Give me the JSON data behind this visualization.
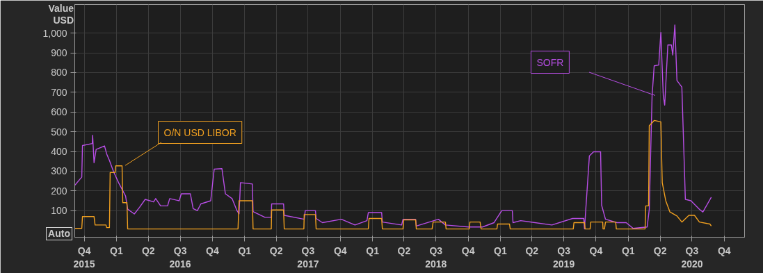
{
  "chart_data": {
    "type": "line",
    "ylabel": "Value\nUSD",
    "annotations": [
      "Auto"
    ],
    "xlim": [
      "2015-09-04",
      "2020-11-28"
    ],
    "ylim": [
      -35,
      1145
    ],
    "xticks": [
      {
        "value": "2015-10-01",
        "label": "Q4\n2015"
      },
      {
        "value": "2016-01-01",
        "label": "Q1"
      },
      {
        "value": "2016-04-01",
        "label": "Q2"
      },
      {
        "value": "2016-07-01",
        "label": "Q3\n2016"
      },
      {
        "value": "2016-10-01",
        "label": "Q4"
      },
      {
        "value": "2017-01-01",
        "label": "Q1"
      },
      {
        "value": "2017-04-01",
        "label": "Q2"
      },
      {
        "value": "2017-07-01",
        "label": "Q3\n2017"
      },
      {
        "value": "2017-10-01",
        "label": "Q4"
      },
      {
        "value": "2018-01-01",
        "label": "Q1"
      },
      {
        "value": "2018-04-01",
        "label": "Q2"
      },
      {
        "value": "2018-07-01",
        "label": "Q3\n2018"
      },
      {
        "value": "2018-10-01",
        "label": "Q4"
      },
      {
        "value": "2019-01-01",
        "label": "Q1"
      },
      {
        "value": "2019-04-01",
        "label": "Q2"
      },
      {
        "value": "2019-07-01",
        "label": "Q3\n2019"
      },
      {
        "value": "2019-10-01",
        "label": "Q4"
      },
      {
        "value": "2020-01-01",
        "label": "Q1"
      },
      {
        "value": "2020-04-01",
        "label": "Q2"
      },
      {
        "value": "2020-07-01",
        "label": "Q3\n2020"
      },
      {
        "value": "2020-10-01",
        "label": "Q4"
      }
    ],
    "yticks": [
      100,
      200,
      300,
      400,
      500,
      600,
      700,
      800,
      900,
      {
        "value": 1000,
        "label": "1,000"
      }
    ],
    "grid": true,
    "legend": false,
    "marker": "none",
    "line_style": "solid",
    "series": [
      {
        "name": "SOFR",
        "color": "#b84ee6",
        "x": [
          "2015-09-04",
          "2015-09-24",
          "2015-09-26",
          "2015-10-24",
          "2015-10-25",
          "2015-10-29",
          "2015-11-04",
          "2015-11-28",
          "2015-12-04",
          "2015-12-12",
          "2015-12-24",
          "2016-01-07",
          "2016-01-27",
          "2016-02-02",
          "2016-02-21",
          "2016-03-07",
          "2016-03-23",
          "2016-04-16",
          "2016-04-22",
          "2016-05-06",
          "2016-05-26",
          "2016-06-01",
          "2016-06-28",
          "2016-07-04",
          "2016-07-30",
          "2016-08-07",
          "2016-08-19",
          "2016-08-29",
          "2016-09-26",
          "2016-10-06",
          "2016-10-28",
          "2016-11-07",
          "2016-11-26",
          "2016-12-10",
          "2016-12-16",
          "2016-12-20",
          "2017-01-23",
          "2017-01-25",
          "2017-02-28",
          "2017-03-18",
          "2017-03-19",
          "2017-04-22",
          "2017-04-24",
          "2017-06-20",
          "2017-06-23",
          "2017-07-22",
          "2017-07-24",
          "2017-08-11",
          "2017-10-04",
          "2017-11-12",
          "2017-12-16",
          "2017-12-20",
          "2018-01-27",
          "2018-01-29",
          "2018-03-25",
          "2018-03-29",
          "2018-05-04",
          "2018-05-06",
          "2018-07-08",
          "2018-07-28",
          "2018-10-02",
          "2018-11-11",
          "2018-12-14",
          "2019-01-05",
          "2019-02-04",
          "2019-02-06",
          "2019-02-28",
          "2019-05-28",
          "2019-07-26",
          "2019-08-27",
          "2019-08-29",
          "2019-09-12",
          "2019-09-24",
          "2019-10-14",
          "2019-10-17",
          "2019-10-28",
          "2019-11-30",
          "2019-12-26",
          "2020-01-15",
          "2020-02-24",
          "2020-03-01",
          "2020-03-09",
          "2020-03-15",
          "2020-03-28",
          "2020-04-03",
          "2020-04-10",
          "2020-04-14",
          "2020-04-23",
          "2020-05-03",
          "2020-05-07",
          "2020-05-13",
          "2020-05-19",
          "2020-06-02",
          "2020-06-12",
          "2020-06-28",
          "2020-07-22",
          "2020-08-01",
          "2020-08-25"
        ],
        "values": [
          228,
          270,
          430,
          440,
          482,
          343,
          410,
          428,
          388,
          354,
          296,
          242,
          174,
          107,
          83,
          117,
          157,
          144,
          161,
          124,
          124,
          161,
          150,
          185,
          185,
          110,
          100,
          134,
          150,
          310,
          313,
          185,
          161,
          100,
          83,
          242,
          235,
          95,
          66,
          66,
          134,
          134,
          76,
          56,
          100,
          100,
          60,
          39,
          56,
          27,
          49,
          90,
          90,
          42,
          27,
          56,
          56,
          22,
          56,
          27,
          17,
          17,
          39,
          100,
          100,
          39,
          49,
          27,
          60,
          60,
          7,
          377,
          398,
          398,
          127,
          56,
          39,
          39,
          10,
          17,
          107,
          682,
          834,
          838,
          1003,
          682,
          635,
          940,
          940,
          889,
          1041,
          760,
          726,
          157,
          150,
          107,
          93,
          168
        ]
      },
      {
        "name": "O/N USD LIBOR",
        "color": "#f0a020",
        "x": [
          "2015-09-04",
          "2015-09-24",
          "2015-09-26",
          "2015-10-29",
          "2015-11-01",
          "2015-12-02",
          "2015-12-04",
          "2015-12-12",
          "2015-12-14",
          "2015-12-28",
          "2015-12-30",
          "2016-01-17",
          "2016-01-19",
          "2016-01-31",
          "2016-02-02",
          "2016-12-13",
          "2016-12-16",
          "2017-01-23",
          "2017-01-25",
          "2017-03-18",
          "2017-03-19",
          "2017-04-22",
          "2017-04-24",
          "2017-06-19",
          "2017-06-20",
          "2017-07-22",
          "2017-07-24",
          "2017-12-20",
          "2017-12-22",
          "2018-01-27",
          "2018-01-29",
          "2018-03-29",
          "2018-03-31",
          "2018-05-04",
          "2018-05-06",
          "2018-06-20",
          "2018-06-23",
          "2018-07-28",
          "2018-07-30",
          "2018-10-04",
          "2018-10-06",
          "2018-11-04",
          "2018-11-07",
          "2018-12-22",
          "2018-12-24",
          "2019-01-27",
          "2019-01-29",
          "2019-07-28",
          "2019-07-30",
          "2019-08-29",
          "2019-08-31",
          "2019-09-14",
          "2019-09-16",
          "2019-10-20",
          "2019-10-21",
          "2019-10-25",
          "2019-10-28",
          "2019-11-26",
          "2019-11-28",
          "2020-02-18",
          "2020-02-20",
          "2020-02-28",
          "2020-03-01",
          "2020-03-15",
          "2020-04-03",
          "2020-04-07",
          "2020-04-17",
          "2020-04-29",
          "2020-05-19",
          "2020-06-02",
          "2020-06-22",
          "2020-07-08",
          "2020-07-22",
          "2020-08-21",
          "2020-08-25"
        ],
        "values": [
          10,
          10,
          70,
          70,
          27,
          27,
          14,
          14,
          293,
          293,
          327,
          327,
          140,
          140,
          7,
          7,
          150,
          150,
          7,
          7,
          103,
          103,
          7,
          7,
          80,
          80,
          7,
          7,
          60,
          60,
          7,
          7,
          53,
          53,
          7,
          7,
          42,
          42,
          7,
          7,
          42,
          42,
          7,
          7,
          32,
          32,
          7,
          7,
          39,
          39,
          7,
          7,
          42,
          42,
          7,
          7,
          42,
          42,
          7,
          7,
          124,
          124,
          530,
          557,
          550,
          242,
          150,
          93,
          73,
          42,
          76,
          76,
          42,
          32,
          22
        ]
      }
    ]
  }
}
